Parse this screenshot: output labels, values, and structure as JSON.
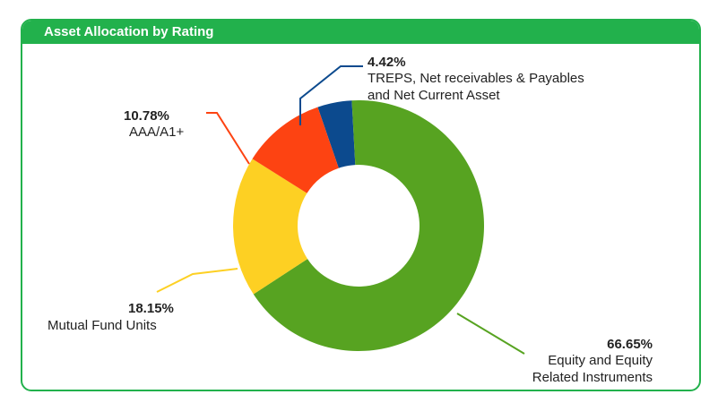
{
  "header": {
    "title": "Asset Allocation by Rating"
  },
  "colors": {
    "accent": "#22b14c"
  },
  "chart_data": {
    "type": "pie",
    "donut": true,
    "title": "Asset Allocation by Rating",
    "start": "from the 4.42% slice near top, clockwise",
    "slices": [
      {
        "label_lines": [
          "Equity and Equity",
          "Related Instruments"
        ],
        "pct_label": "66.65%",
        "value": 66.65,
        "color": "#57a321"
      },
      {
        "label_lines": [
          "Mutual Fund Units"
        ],
        "pct_label": "18.15%",
        "value": 18.15,
        "color": "#fdd023"
      },
      {
        "label_lines": [
          "AAA/A1+"
        ],
        "pct_label": "10.78%",
        "value": 10.78,
        "color": "#fd4312"
      },
      {
        "label_lines": [
          "TREPS, Net receivables & Payables",
          "and Net Current Asset"
        ],
        "pct_label": "4.42%",
        "value": 4.42,
        "color": "#0c4a8e"
      }
    ]
  }
}
